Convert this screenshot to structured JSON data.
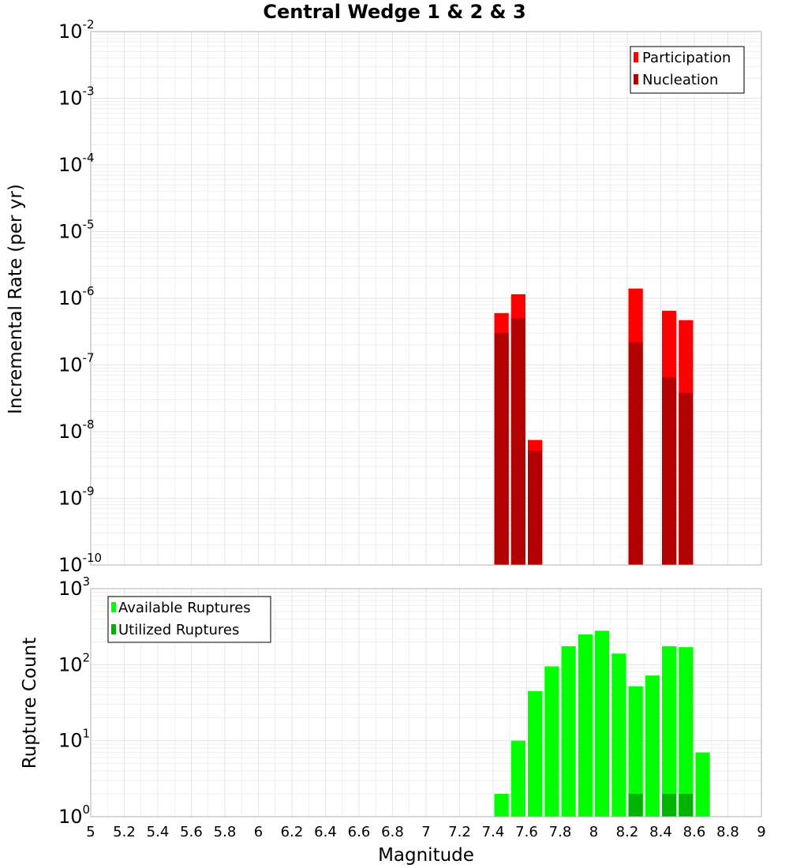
{
  "title": "Central Wedge 1 & 2 & 3",
  "chart_data": [
    {
      "type": "bar",
      "panel": "rate",
      "ylabel": "Incremental Rate (per yr)",
      "yscale": "log",
      "ylim_exponent": [
        -10,
        -2
      ],
      "ylim": [
        1e-10,
        0.01
      ],
      "xlim": [
        5,
        9
      ],
      "grid": true,
      "legend_position": "top-right",
      "bin_width": 0.1,
      "series": [
        {
          "name": "Participation",
          "color": "#ff0000",
          "points": [
            {
              "x": 7.45,
              "y": 6e-07
            },
            {
              "x": 7.55,
              "y": 1.15e-06
            },
            {
              "x": 7.65,
              "y": 7.5e-09
            },
            {
              "x": 8.25,
              "y": 1.4e-06
            },
            {
              "x": 8.45,
              "y": 6.5e-07
            },
            {
              "x": 8.55,
              "y": 4.7e-07
            }
          ]
        },
        {
          "name": "Nucleation",
          "color": "#b30000",
          "points": [
            {
              "x": 7.45,
              "y": 3e-07
            },
            {
              "x": 7.55,
              "y": 5e-07
            },
            {
              "x": 7.65,
              "y": 5.2e-09
            },
            {
              "x": 8.25,
              "y": 2.2e-07
            },
            {
              "x": 8.45,
              "y": 6.5e-08
            },
            {
              "x": 8.55,
              "y": 3.8e-08
            }
          ]
        }
      ]
    },
    {
      "type": "bar",
      "panel": "count",
      "xlabel": "Magnitude",
      "ylabel": "Rupture Count",
      "yscale": "log",
      "ylim_exponent": [
        0,
        3
      ],
      "ylim": [
        1,
        1000
      ],
      "xlim": [
        5,
        9
      ],
      "grid": true,
      "legend_position": "top-left",
      "bin_width": 0.1,
      "series": [
        {
          "name": "Available Ruptures",
          "color": "#00ff00",
          "points": [
            {
              "x": 7.45,
              "y": 2
            },
            {
              "x": 7.55,
              "y": 10
            },
            {
              "x": 7.65,
              "y": 45
            },
            {
              "x": 7.75,
              "y": 95
            },
            {
              "x": 7.85,
              "y": 175
            },
            {
              "x": 7.95,
              "y": 250
            },
            {
              "x": 8.05,
              "y": 280
            },
            {
              "x": 8.15,
              "y": 140
            },
            {
              "x": 8.25,
              "y": 52
            },
            {
              "x": 8.35,
              "y": 72
            },
            {
              "x": 8.45,
              "y": 175
            },
            {
              "x": 8.55,
              "y": 170
            },
            {
              "x": 8.65,
              "y": 7
            }
          ]
        },
        {
          "name": "Utilized Ruptures",
          "color": "#00b300",
          "points": [
            {
              "x": 7.45,
              "y": 1
            },
            {
              "x": 7.55,
              "y": 1
            },
            {
              "x": 7.65,
              "y": 1
            },
            {
              "x": 8.25,
              "y": 2
            },
            {
              "x": 8.45,
              "y": 2
            },
            {
              "x": 8.55,
              "y": 2
            }
          ]
        }
      ]
    }
  ],
  "x_ticks": [
    "5",
    "5.2",
    "5.4",
    "5.6",
    "5.8",
    "6",
    "6.2",
    "6.4",
    "6.6",
    "6.8",
    "7",
    "7.2",
    "7.4",
    "7.6",
    "7.8",
    "8",
    "8.2",
    "8.4",
    "8.6",
    "8.8",
    "9"
  ],
  "colors": {
    "grid": "#e6e6e6",
    "plot_border": "#b0b0b0",
    "background": "#ffffff"
  }
}
